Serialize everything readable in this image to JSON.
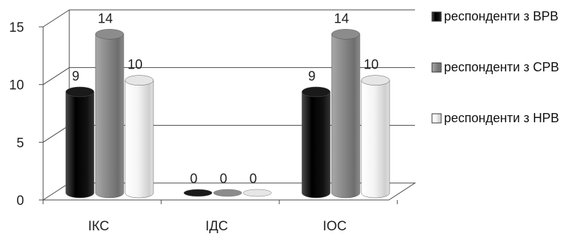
{
  "chart_data": {
    "type": "bar",
    "style": "3d-cylinder",
    "categories": [
      "ІКС",
      "ІДС",
      "ІОС"
    ],
    "series": [
      {
        "name": "респонденти з ВРВ",
        "values": [
          9,
          0,
          9
        ],
        "color": "#1a1a1a"
      },
      {
        "name": "респонденти з СРВ",
        "values": [
          14,
          0,
          14
        ],
        "color": "#8c8c8c"
      },
      {
        "name": "респонденти з НРВ",
        "values": [
          10,
          0,
          10
        ],
        "color": "#e6e6e6"
      }
    ],
    "yticks": [
      0,
      5,
      10,
      15
    ],
    "ylim": [
      0,
      15
    ],
    "grid": true,
    "legend_position": "right"
  }
}
